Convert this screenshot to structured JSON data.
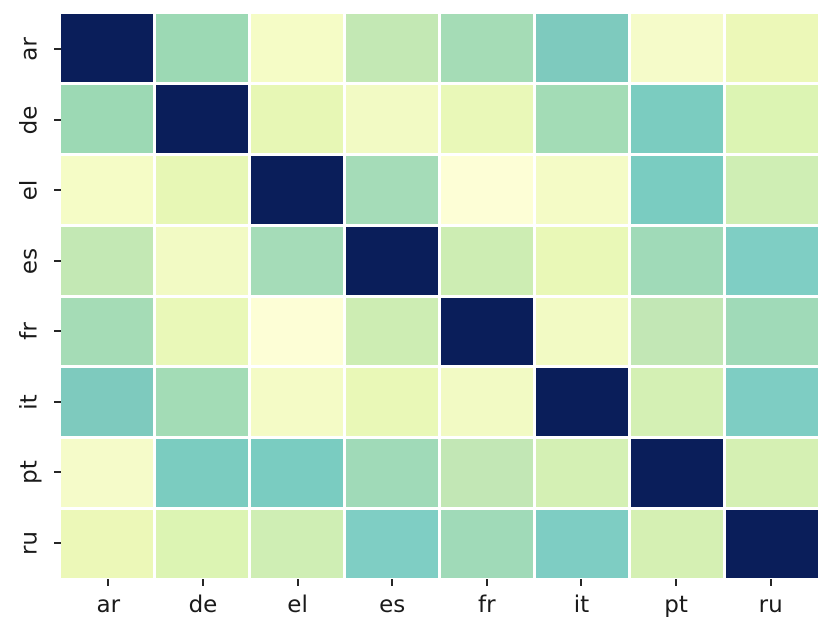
{
  "figure": {
    "background_color": "#ffffff",
    "tick_color": "#262626",
    "label_color": "#1a1a1a",
    "grid_line_color": "#ffffff"
  },
  "chart_data": {
    "type": "heatmap",
    "title": "",
    "xlabel": "",
    "ylabel": "",
    "colormap": "YlGnBu",
    "value_range": [
      0,
      1
    ],
    "x_categories": [
      "ar",
      "de",
      "el",
      "es",
      "fr",
      "it",
      "pt",
      "ru"
    ],
    "y_categories": [
      "ar",
      "de",
      "el",
      "es",
      "fr",
      "it",
      "pt",
      "ru"
    ],
    "values": [
      [
        1.0,
        0.32,
        0.07,
        0.26,
        0.31,
        0.38,
        0.07,
        0.11
      ],
      [
        0.32,
        1.0,
        0.14,
        0.08,
        0.13,
        0.31,
        0.39,
        0.18
      ],
      [
        0.07,
        0.14,
        1.0,
        0.31,
        0.01,
        0.07,
        0.39,
        0.22
      ],
      [
        0.26,
        0.08,
        0.31,
        1.0,
        0.23,
        0.13,
        0.31,
        0.38
      ],
      [
        0.31,
        0.13,
        0.01,
        0.23,
        1.0,
        0.08,
        0.26,
        0.32
      ],
      [
        0.38,
        0.31,
        0.07,
        0.13,
        0.08,
        1.0,
        0.2,
        0.38
      ],
      [
        0.07,
        0.39,
        0.39,
        0.31,
        0.26,
        0.2,
        1.0,
        0.2
      ],
      [
        0.11,
        0.18,
        0.22,
        0.38,
        0.32,
        0.38,
        0.2,
        1.0
      ]
    ],
    "cell_colors": [
      [
        "#0a1e5a",
        "#9cd9b4",
        "#f5fcc6",
        "#c3e8b4",
        "#a5dcb6",
        "#7ecabe",
        "#f5fbc9",
        "#ecf8b8"
      ],
      [
        "#9cd9b4",
        "#0a1e5a",
        "#e7f7b5",
        "#f2fac4",
        "#e9f8b8",
        "#a3dcb6",
        "#7bccc0",
        "#dcf4b3"
      ],
      [
        "#f5fcc6",
        "#e7f7b5",
        "#0a1e5a",
        "#a5dcb8",
        "#fdfed6",
        "#f4fbc6",
        "#7accc1",
        "#cfeeb4"
      ],
      [
        "#c3e8b4",
        "#f2fac4",
        "#a5dcb8",
        "#0a1e5a",
        "#cdedb3",
        "#e9f8b7",
        "#a0dab8",
        "#7fcec4"
      ],
      [
        "#a5dcb6",
        "#e9f8b8",
        "#fdfed6",
        "#cdedb3",
        "#0a1e5a",
        "#f2fac4",
        "#c2e7b5",
        "#a0dab8"
      ],
      [
        "#7ecabe",
        "#a3dcb6",
        "#f4fbc6",
        "#e9f8b7",
        "#f2fac4",
        "#0a1e5a",
        "#d4f0b4",
        "#7ecdc3"
      ],
      [
        "#f5fbc9",
        "#7bccc0",
        "#7accc1",
        "#a0dab8",
        "#c2e7b5",
        "#d4f0b4",
        "#0a1e5a",
        "#d5f0b3"
      ],
      [
        "#ecf8b8",
        "#dcf4b3",
        "#cfeeb4",
        "#7fcec4",
        "#a0dab8",
        "#7ecdc3",
        "#d5f0b3",
        "#0a1e5a"
      ]
    ]
  }
}
